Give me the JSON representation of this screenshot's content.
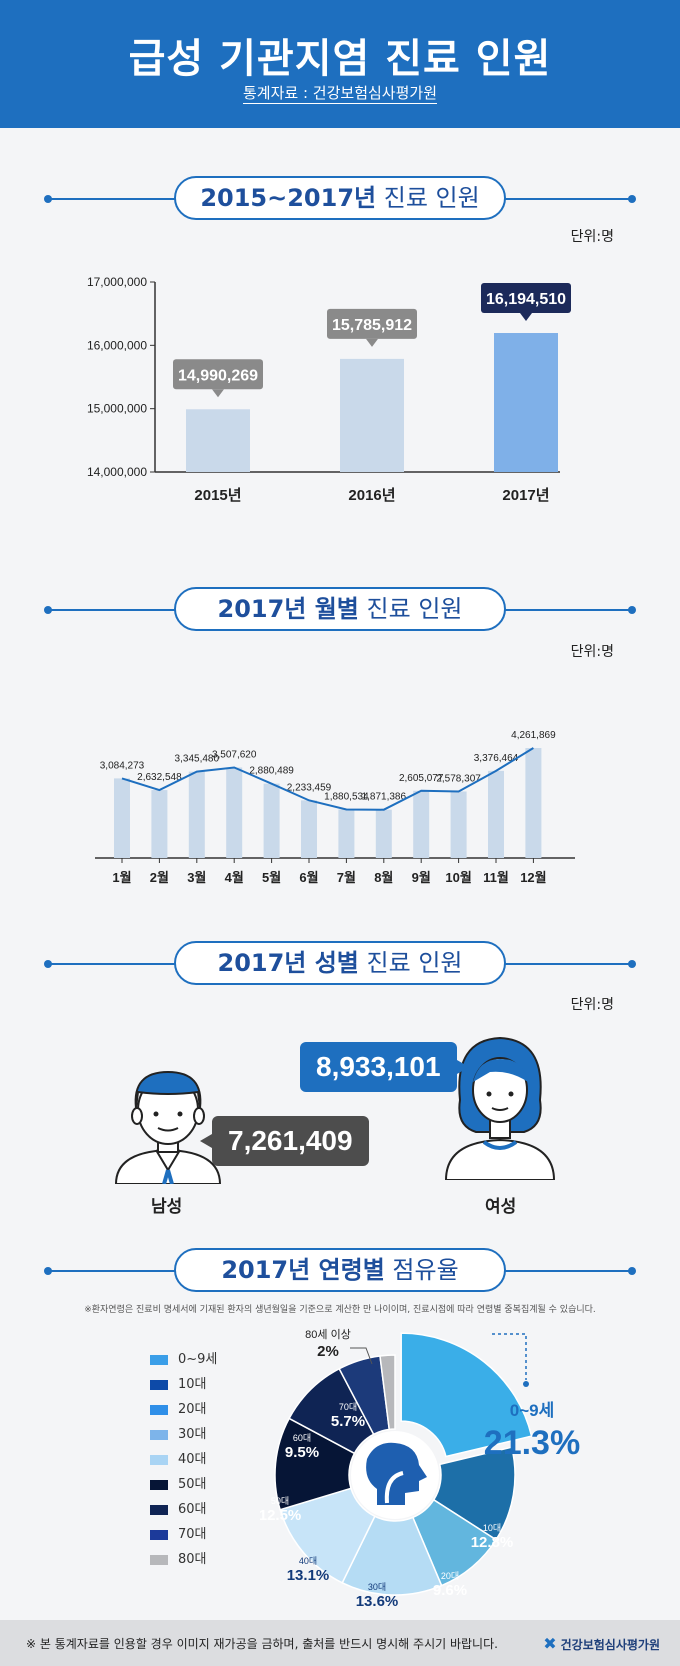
{
  "header": {
    "title": "급성 기관지염 진료 인원",
    "source": "통계자료 : 건강보험심사평가원"
  },
  "sections": {
    "yearly": {
      "title": "2015~2017년",
      "title_rest": " 진료 인원",
      "unit": "단위:명"
    },
    "monthly": {
      "title": "2017년 월별",
      "title_rest": " 진료 인원",
      "unit": "단위:명"
    },
    "gender": {
      "title": "2017년 성별",
      "title_rest": " 진료 인원",
      "unit": "단위:명"
    },
    "age": {
      "title": "2017년 연령별",
      "title_rest": " 점유율"
    }
  },
  "gender": {
    "male_label": "남성",
    "male_value": "7,261,409",
    "female_label": "여성",
    "female_value": "8,933,101"
  },
  "age_note": "※환자연령은 진료비 명세서에 기재된 환자의 생년월일을 기준으로 계산한 만 나이이며, 진료시점에 따라 연령별 중복집계될 수 있습니다.",
  "footer": {
    "note": "※ 본 통계자료를 인용할 경우 이미지 재가공을 금하며, 출처를 반드시 명시해 주시기 바랍니다.",
    "logo": "건강보험심사평가원"
  },
  "colors": {
    "primary": "#1e6fbf",
    "bar_light": "#c9d9ea",
    "bar_highlight": "#7fb0e8",
    "dark_navy": "#1c2a5a"
  },
  "chart_data": [
    {
      "type": "bar",
      "categories": [
        "2015년",
        "2016년",
        "2017년"
      ],
      "values": [
        14990269,
        15785912,
        16194510
      ],
      "value_labels": [
        "14,990,269",
        "15,785,912",
        "16,194,510"
      ],
      "ylim": [
        14000000,
        17000000
      ],
      "ytick_labels": [
        "14,000,000",
        "15,000,000",
        "16,000,000",
        "17,000,000"
      ],
      "highlight_index": 2
    },
    {
      "type": "bar",
      "categories": [
        "1월",
        "2월",
        "3월",
        "4월",
        "5월",
        "6월",
        "7월",
        "8월",
        "9월",
        "10월",
        "11월",
        "12월"
      ],
      "values": [
        3084273,
        2632548,
        3345480,
        3507620,
        2880489,
        2233459,
        1880534,
        1871386,
        2605077,
        2578307,
        3376464,
        4261869
      ],
      "value_labels": [
        "3,084,273",
        "2,632,548",
        "3,345,480",
        "3,507,620",
        "2,880,489",
        "2,233,459",
        "1,880,534",
        "1,871,386",
        "2,605,077",
        "2,578,307",
        "3,376,464",
        "4,261,869"
      ],
      "overlay": "line"
    },
    {
      "type": "pie",
      "labels": [
        "0~9세",
        "10대",
        "20대",
        "30대",
        "40대",
        "50대",
        "60대",
        "70대",
        "80세 이상"
      ],
      "legend_labels": [
        "0~9세",
        "10대",
        "20대",
        "30대",
        "40대",
        "50대",
        "60대",
        "70대",
        "80대"
      ],
      "values": [
        21.3,
        12.8,
        9.6,
        13.6,
        13.1,
        12.5,
        9.5,
        5.7,
        2
      ],
      "value_labels": [
        "21.3%",
        "12.8%",
        "9.6%",
        "13.6%",
        "13.1%",
        "12.5%",
        "9.5%",
        "5.7%",
        "2%"
      ],
      "colors": [
        "#3aaee8",
        "#1d6fa8",
        "#62b6de",
        "#b5dcf4",
        "#c7e4f8",
        "#061536",
        "#0f2454",
        "#1c3a7a",
        "#b7b8bb"
      ],
      "legend_colors": [
        "#3a9ee8",
        "#0d4aa8",
        "#2f8fe8",
        "#7db4ea",
        "#a9d4f4",
        "#061536",
        "#0f2454",
        "#1c3a9a",
        "#b7b8bb"
      ]
    }
  ]
}
